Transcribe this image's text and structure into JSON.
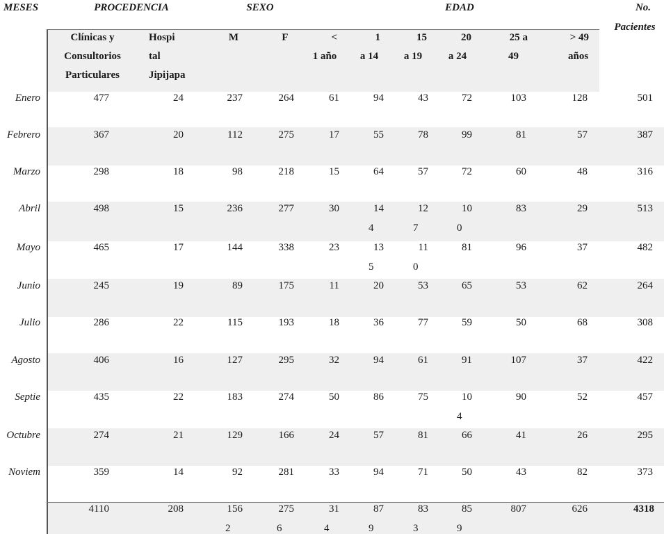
{
  "header": {
    "groups": {
      "meses": "MESES",
      "procedencia": "PROCEDENCIA",
      "sexo": "SEXO",
      "edad": "EDAD",
      "pacientes": [
        "No.",
        "Pacientes"
      ]
    },
    "subheaders": {
      "clinicas": [
        "Clínicas y",
        "Consultorios",
        "Particulares"
      ],
      "hospital": [
        "Hospi",
        "tal",
        "Jipijapa"
      ],
      "m": "M",
      "f": "F",
      "age_lt1": [
        "<",
        "1 año"
      ],
      "age_1_14": [
        "1",
        "a 14"
      ],
      "age_15_19": [
        "15",
        "a 19"
      ],
      "age_20_24": [
        "20",
        "a 24"
      ],
      "age_25_49": [
        "25 a",
        "49"
      ],
      "age_gt49": [
        "> 49",
        "años"
      ]
    }
  },
  "rows": [
    {
      "month": "Enero",
      "cells": [
        [
          "477"
        ],
        [
          "24"
        ],
        [
          "237"
        ],
        [
          "264"
        ],
        [
          "61"
        ],
        [
          "94"
        ],
        [
          "43"
        ],
        [
          "72"
        ],
        [
          "103"
        ],
        [
          "128"
        ],
        [
          "501"
        ]
      ]
    },
    {
      "month": "Febrero",
      "cells": [
        [
          "367"
        ],
        [
          "20"
        ],
        [
          "112"
        ],
        [
          "275"
        ],
        [
          "17"
        ],
        [
          "55"
        ],
        [
          "78"
        ],
        [
          "99"
        ],
        [
          "81"
        ],
        [
          "57"
        ],
        [
          "387"
        ]
      ]
    },
    {
      "month": "Marzo",
      "cells": [
        [
          "298"
        ],
        [
          "18"
        ],
        [
          "98"
        ],
        [
          "218"
        ],
        [
          "15"
        ],
        [
          "64"
        ],
        [
          "57"
        ],
        [
          "72"
        ],
        [
          "60"
        ],
        [
          "48"
        ],
        [
          "316"
        ]
      ]
    },
    {
      "month": "Abril",
      "cells": [
        [
          "498"
        ],
        [
          "15"
        ],
        [
          "236"
        ],
        [
          "277"
        ],
        [
          "30"
        ],
        [
          "14",
          "4"
        ],
        [
          "12",
          "7"
        ],
        [
          "10",
          "0"
        ],
        [
          "83"
        ],
        [
          "29"
        ],
        [
          "513"
        ]
      ]
    },
    {
      "month": "Mayo",
      "cells": [
        [
          "465"
        ],
        [
          "17"
        ],
        [
          "144"
        ],
        [
          "338"
        ],
        [
          "23"
        ],
        [
          "13",
          "5"
        ],
        [
          "11",
          "0"
        ],
        [
          "81"
        ],
        [
          "96"
        ],
        [
          "37"
        ],
        [
          "482"
        ]
      ]
    },
    {
      "month": "Junio",
      "cells": [
        [
          "245"
        ],
        [
          "19"
        ],
        [
          "89"
        ],
        [
          "175"
        ],
        [
          "11"
        ],
        [
          "20"
        ],
        [
          "53"
        ],
        [
          "65"
        ],
        [
          "53"
        ],
        [
          "62"
        ],
        [
          "264"
        ]
      ]
    },
    {
      "month": "Julio",
      "cells": [
        [
          "286"
        ],
        [
          "22"
        ],
        [
          "115"
        ],
        [
          "193"
        ],
        [
          "18"
        ],
        [
          "36"
        ],
        [
          "77"
        ],
        [
          "59"
        ],
        [
          "50"
        ],
        [
          "68"
        ],
        [
          "308"
        ]
      ]
    },
    {
      "month": "Agosto",
      "cells": [
        [
          "406"
        ],
        [
          "16"
        ],
        [
          "127"
        ],
        [
          "295"
        ],
        [
          "32"
        ],
        [
          "94"
        ],
        [
          "61"
        ],
        [
          "91"
        ],
        [
          "107"
        ],
        [
          "37"
        ],
        [
          "422"
        ]
      ]
    },
    {
      "month": "Septie",
      "cells": [
        [
          "435"
        ],
        [
          "22"
        ],
        [
          "183"
        ],
        [
          "274"
        ],
        [
          "50"
        ],
        [
          "86"
        ],
        [
          "75"
        ],
        [
          "10",
          "4"
        ],
        [
          "90"
        ],
        [
          "52"
        ],
        [
          "457"
        ]
      ]
    },
    {
      "month": "Octubre",
      "cells": [
        [
          "274"
        ],
        [
          "21"
        ],
        [
          "129"
        ],
        [
          "166"
        ],
        [
          "24"
        ],
        [
          "57"
        ],
        [
          "81"
        ],
        [
          "66"
        ],
        [
          "41"
        ],
        [
          "26"
        ],
        [
          "295"
        ]
      ]
    },
    {
      "month": "Noviem",
      "cells": [
        [
          "359"
        ],
        [
          "14"
        ],
        [
          "92"
        ],
        [
          "281"
        ],
        [
          "33"
        ],
        [
          "94"
        ],
        [
          "71"
        ],
        [
          "50"
        ],
        [
          "43"
        ],
        [
          "82"
        ],
        [
          "373"
        ]
      ]
    }
  ],
  "total": {
    "cells": [
      [
        "4110"
      ],
      [
        "208"
      ],
      [
        "156",
        "2"
      ],
      [
        "275",
        "6"
      ],
      [
        "31",
        "4"
      ],
      [
        "87",
        "9"
      ],
      [
        "83",
        "3"
      ],
      [
        "85",
        "9"
      ],
      [
        "807"
      ],
      [
        "626"
      ],
      [
        "4318"
      ]
    ]
  }
}
